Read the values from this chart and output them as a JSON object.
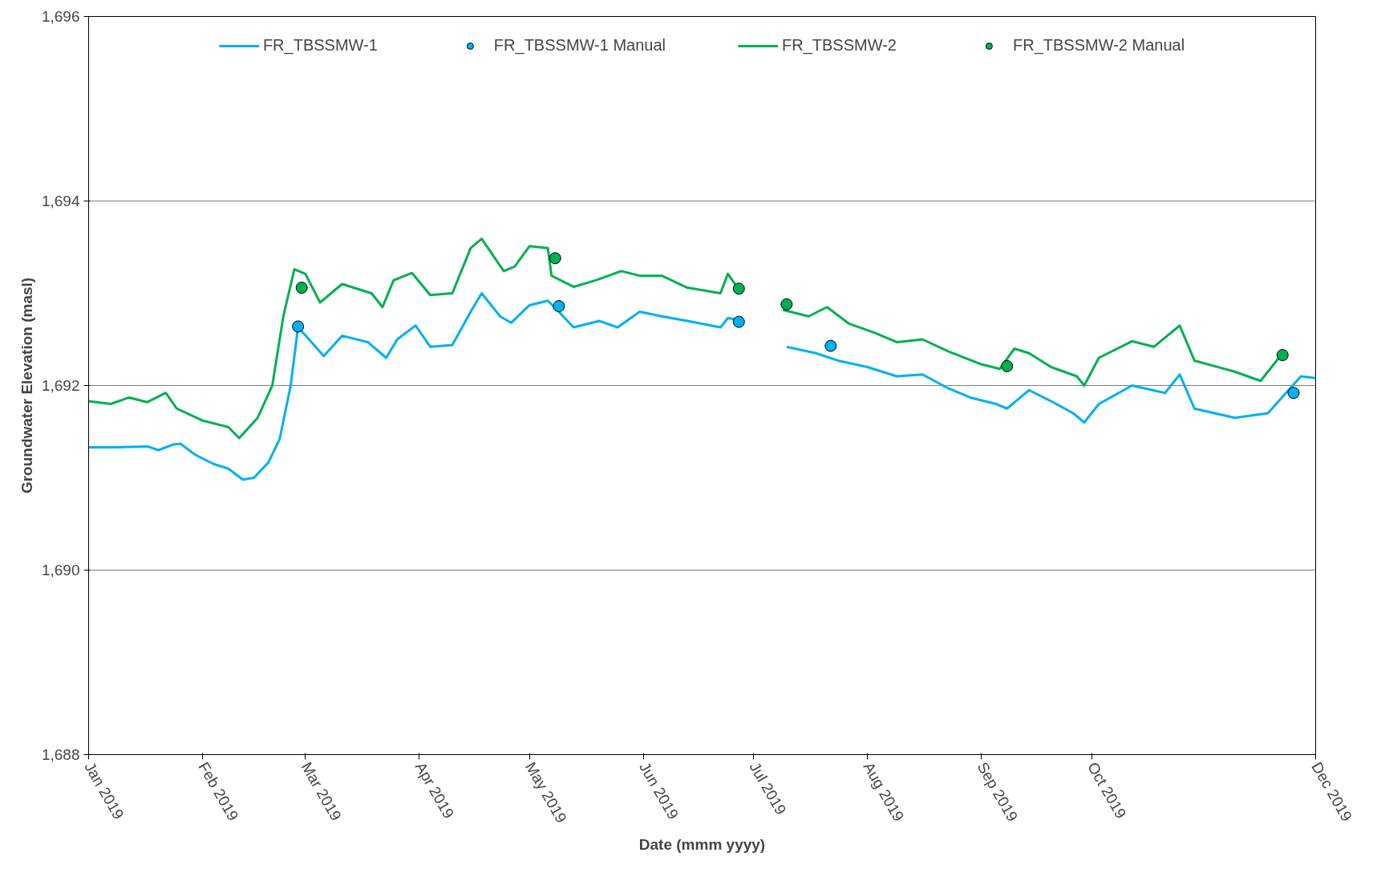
{
  "chart_data": {
    "type": "line",
    "xlabel": "Date (mmm yyyy)",
    "ylabel": "Groundwater Elevation (masl)",
    "xlim": [
      "2019-01-01",
      "2019-12-01"
    ],
    "xticks": [
      {
        "value": "2019-01-01",
        "label": "Jan 2019"
      },
      {
        "value": "2019-02-01",
        "label": "Feb 2019"
      },
      {
        "value": "2019-03-01",
        "label": "Mar 2019"
      },
      {
        "value": "2019-04-01",
        "label": "Apr 2019"
      },
      {
        "value": "2019-05-01",
        "label": "May 2019"
      },
      {
        "value": "2019-06-01",
        "label": "Jun 2019"
      },
      {
        "value": "2019-07-01",
        "label": "Jul 2019"
      },
      {
        "value": "2019-08-01",
        "label": "Aug 2019"
      },
      {
        "value": "2019-09-01",
        "label": "Sep 2019"
      },
      {
        "value": "2019-10-01",
        "label": "Oct 2019"
      },
      {
        "value": "2019-12-01",
        "label": "Dec 2019"
      }
    ],
    "ylim": [
      1688,
      1696
    ],
    "yticks": [
      {
        "value": 1688,
        "label": "1,688"
      },
      {
        "value": 1690,
        "label": "1,690"
      },
      {
        "value": 1692,
        "label": "1,692"
      },
      {
        "value": 1694,
        "label": "1,694"
      },
      {
        "value": 1696,
        "label": "1,696"
      }
    ],
    "grid": "y",
    "legend": "top",
    "line_style": "solid",
    "series": [
      {
        "name": "FR_TBSSMW-1",
        "color": "#00b0f0",
        "x": [
          "2019-01-01",
          "2019-01-08",
          "2019-01-17",
          "2019-01-20",
          "2019-01-24",
          "2019-01-26",
          "2019-01-30",
          "2019-02-04",
          "2019-02-08",
          "2019-02-12",
          "2019-02-15",
          "2019-02-19",
          "2019-02-22",
          "2019-02-25",
          "2019-02-27",
          "2019-03-02",
          "2019-03-06",
          "2019-03-11",
          "2019-03-18",
          "2019-03-23",
          "2019-03-26",
          "2019-03-31",
          "2019-04-04",
          "2019-04-10",
          "2019-04-15",
          "2019-04-18",
          "2019-04-23",
          "2019-04-26",
          "2019-05-01",
          "2019-05-06",
          "2019-05-09",
          "2019-05-13",
          "2019-05-20",
          "2019-05-25",
          "2019-05-31",
          "2019-06-06",
          "2019-06-13",
          "2019-06-22",
          "2019-06-24",
          "2019-06-26",
          "2019-07-03",
          "2019-07-10",
          "2019-07-18",
          "2019-07-24",
          "2019-08-01",
          "2019-08-09",
          "2019-08-16",
          "2019-08-23",
          "2019-08-29",
          "2019-09-05",
          "2019-09-08",
          "2019-09-14",
          "2019-09-20",
          "2019-09-26",
          "2019-09-29",
          "2019-10-03",
          "2019-10-12",
          "2019-10-21",
          "2019-10-25",
          "2019-10-29",
          "2019-11-09",
          "2019-11-18",
          "2019-11-27",
          "2019-12-01"
        ],
        "values": [
          1691.33,
          1691.33,
          1691.34,
          1691.3,
          1691.36,
          1691.37,
          1691.25,
          1691.15,
          1691.1,
          1690.98,
          1691.0,
          1691.17,
          1691.42,
          1692.0,
          1692.63,
          1692.5,
          1692.32,
          1692.54,
          1692.47,
          1692.3,
          1692.5,
          1692.65,
          1692.42,
          1692.44,
          1692.8,
          1693.0,
          1692.75,
          1692.68,
          1692.87,
          1692.92,
          1692.8,
          1692.63,
          1692.7,
          1692.63,
          1692.8,
          1692.75,
          1692.7,
          1692.63,
          1692.73,
          1692.72,
          null,
          1692.42,
          1692.35,
          1692.27,
          1692.2,
          1692.1,
          1692.12,
          1691.97,
          1691.87,
          1691.8,
          1691.75,
          1691.95,
          1691.83,
          1691.7,
          1691.6,
          1691.8,
          1692.0,
          1691.92,
          1692.12,
          1691.75,
          1691.65,
          1691.7,
          1692.1,
          1692.08
        ]
      },
      {
        "name": "FR_TBSSMW-1 Manual",
        "type": "scatter",
        "marker": "circle",
        "color": "#00b0f0",
        "x": [
          "2019-02-27",
          "2019-05-09",
          "2019-06-27",
          "2019-07-22",
          "2019-11-25"
        ],
        "values": [
          1692.64,
          1692.86,
          1692.69,
          1692.43,
          1691.92
        ]
      },
      {
        "name": "FR_TBSSMW-2",
        "color": "#00b050",
        "x": [
          "2019-01-01",
          "2019-01-07",
          "2019-01-12",
          "2019-01-17",
          "2019-01-22",
          "2019-01-25",
          "2019-02-01",
          "2019-02-08",
          "2019-02-11",
          "2019-02-16",
          "2019-02-20",
          "2019-02-23",
          "2019-02-26",
          "2019-03-01",
          "2019-03-05",
          "2019-03-11",
          "2019-03-19",
          "2019-03-22",
          "2019-03-25",
          "2019-03-30",
          "2019-04-04",
          "2019-04-10",
          "2019-04-15",
          "2019-04-18",
          "2019-04-24",
          "2019-04-27",
          "2019-05-01",
          "2019-05-06",
          "2019-05-07",
          "2019-05-13",
          "2019-05-19",
          "2019-05-26",
          "2019-05-31",
          "2019-06-06",
          "2019-06-13",
          "2019-06-22",
          "2019-06-24",
          "2019-06-27",
          "2019-07-03",
          "2019-07-09",
          "2019-07-16",
          "2019-07-21",
          "2019-07-27",
          "2019-08-03",
          "2019-08-09",
          "2019-08-16",
          "2019-08-23",
          "2019-09-01",
          "2019-09-06",
          "2019-09-10",
          "2019-09-14",
          "2019-09-20",
          "2019-09-27",
          "2019-09-29",
          "2019-10-03",
          "2019-10-12",
          "2019-10-18",
          "2019-10-25",
          "2019-10-29",
          "2019-11-09",
          "2019-11-16",
          "2019-11-22"
        ],
        "values": [
          1691.83,
          1691.8,
          1691.87,
          1691.82,
          1691.92,
          1691.75,
          1691.62,
          1691.55,
          1691.43,
          1691.65,
          1692.0,
          1692.75,
          1693.26,
          1693.21,
          1692.9,
          1693.1,
          1693.0,
          1692.85,
          1693.14,
          1693.22,
          1692.98,
          1693.0,
          1693.49,
          1693.59,
          1693.24,
          1693.29,
          1693.51,
          1693.49,
          1693.19,
          1693.07,
          1693.14,
          1693.24,
          1693.19,
          1693.19,
          1693.06,
          1693.0,
          1693.21,
          1693.04,
          null,
          1692.82,
          1692.75,
          1692.85,
          1692.67,
          1692.57,
          1692.47,
          1692.5,
          1692.37,
          1692.23,
          1692.18,
          1692.4,
          1692.35,
          1692.2,
          1692.1,
          1692.0,
          1692.3,
          1692.48,
          1692.42,
          1692.65,
          1692.27,
          1692.15,
          1692.05,
          1692.35
        ]
      },
      {
        "name": "FR_TBSSMW-2 Manual",
        "type": "scatter",
        "marker": "circle",
        "color": "#00b050",
        "x": [
          "2019-02-28",
          "2019-05-08",
          "2019-06-27",
          "2019-07-10",
          "2019-09-08",
          "2019-11-22"
        ],
        "values": [
          1693.06,
          1693.38,
          1693.05,
          1692.88,
          1692.21,
          1692.33
        ]
      }
    ]
  }
}
